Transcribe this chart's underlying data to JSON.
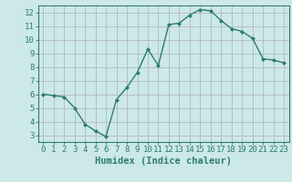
{
  "x": [
    0,
    1,
    2,
    3,
    4,
    5,
    6,
    7,
    8,
    9,
    10,
    11,
    12,
    13,
    14,
    15,
    16,
    17,
    18,
    19,
    20,
    21,
    22,
    23
  ],
  "y": [
    6.0,
    5.9,
    5.8,
    5.0,
    3.8,
    3.3,
    2.9,
    5.6,
    6.5,
    7.6,
    9.3,
    8.1,
    11.1,
    11.2,
    11.8,
    12.2,
    12.1,
    11.4,
    10.8,
    10.6,
    10.1,
    8.6,
    8.5,
    8.3
  ],
  "line_color": "#2e7d6e",
  "marker": "D",
  "marker_size": 2.0,
  "bg_color": "#cce8e8",
  "grid_color": "#b0b0b0",
  "xlabel": "Humidex (Indice chaleur)",
  "xlim": [
    -0.5,
    23.5
  ],
  "ylim": [
    2.5,
    12.5
  ],
  "xticks": [
    0,
    1,
    2,
    3,
    4,
    5,
    6,
    7,
    8,
    9,
    10,
    11,
    12,
    13,
    14,
    15,
    16,
    17,
    18,
    19,
    20,
    21,
    22,
    23
  ],
  "yticks": [
    3,
    4,
    5,
    6,
    7,
    8,
    9,
    10,
    11,
    12
  ],
  "xlabel_fontsize": 7.5,
  "tick_fontsize": 6.5,
  "tick_color": "#2e7d6e",
  "axis_color": "#2e7d6e",
  "linewidth": 1.0
}
